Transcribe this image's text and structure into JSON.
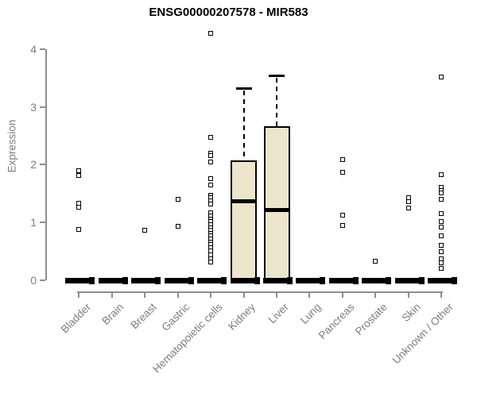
{
  "title": "ENSG00000207578 - MIR583",
  "chart_data": {
    "type": "boxplot",
    "title": "ENSG00000207578 - MIR583",
    "xlabel": "",
    "ylabel": "Expression",
    "ylim": [
      0,
      4.3
    ],
    "yticks": [
      0,
      1,
      2,
      3,
      4
    ],
    "grid": false,
    "legend": "none",
    "colors": {
      "box_fill": "#ECE5CC",
      "box_border": "#000000",
      "median": "#000000",
      "axis": "#8E8E8E",
      "text": "#7D7D7D",
      "outlier": "#000000"
    },
    "categories": [
      "Bladder",
      "Brain",
      "Breast",
      "Gastric",
      "Hematopoietic cells",
      "Kidney",
      "Liver",
      "Lung",
      "Pancreas",
      "Prostate",
      "Skin",
      "Unknown / Other"
    ],
    "series": [
      {
        "category": "Bladder",
        "box": null,
        "zero_bar": true,
        "outliers": [
          1.9,
          1.81,
          1.33,
          1.26,
          0.88
        ]
      },
      {
        "category": "Brain",
        "box": null,
        "zero_bar": true,
        "outliers": []
      },
      {
        "category": "Breast",
        "box": null,
        "zero_bar": true,
        "outliers": [
          0.86
        ]
      },
      {
        "category": "Gastric",
        "box": null,
        "zero_bar": true,
        "outliers": [
          1.4,
          0.93
        ]
      },
      {
        "category": "Hematopoietic cells",
        "box": null,
        "zero_bar": true,
        "outliers": [
          4.27,
          2.47,
          2.2,
          2.15,
          2.05,
          1.76,
          1.65,
          1.47,
          1.42,
          1.37,
          1.31,
          1.16,
          1.11,
          1.06,
          1.01,
          0.96,
          0.91,
          0.86,
          0.81,
          0.76,
          0.71,
          0.66,
          0.61,
          0.56,
          0.5,
          0.43,
          0.37,
          0.31
        ]
      },
      {
        "category": "Kidney",
        "zero_bar": true,
        "box": {
          "q1": 0,
          "median": 1.37,
          "q3": 2.07,
          "whisker_high": 3.32
        },
        "outliers": []
      },
      {
        "category": "Liver",
        "zero_bar": true,
        "box": {
          "q1": 0,
          "median": 1.21,
          "q3": 2.67,
          "whisker_high": 3.55
        },
        "outliers": []
      },
      {
        "category": "Lung",
        "box": null,
        "zero_bar": true,
        "outliers": []
      },
      {
        "category": "Pancreas",
        "box": null,
        "zero_bar": true,
        "outliers": [
          2.08,
          1.87,
          1.12,
          0.95
        ]
      },
      {
        "category": "Prostate",
        "box": null,
        "zero_bar": true,
        "outliers": [
          0.33
        ]
      },
      {
        "category": "Skin",
        "box": null,
        "zero_bar": true,
        "outliers": [
          1.43,
          1.36,
          1.25
        ]
      },
      {
        "category": "Unknown / Other",
        "box": null,
        "zero_bar": true,
        "outliers": [
          3.51,
          1.82,
          1.6,
          1.55,
          1.51,
          1.4,
          1.15,
          1.02,
          0.92,
          0.77,
          0.6,
          0.49,
          0.37,
          0.3,
          0.2
        ]
      }
    ]
  }
}
